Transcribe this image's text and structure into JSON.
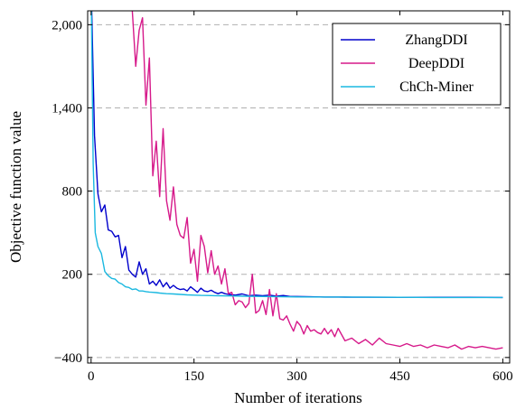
{
  "chart_data": {
    "type": "line",
    "xlabel": "Number of iterations",
    "ylabel": "Objective function value",
    "xlim": [
      -5,
      610
    ],
    "ylim": [
      -440,
      2100
    ],
    "xticks": [
      0,
      150,
      300,
      450,
      600
    ],
    "yticks": [
      -400,
      200,
      800,
      1400,
      2000
    ],
    "xtick_labels": [
      "0",
      "150",
      "300",
      "450",
      "600"
    ],
    "ytick_labels": [
      "−400",
      "200",
      "800",
      "1,400",
      "2,000"
    ],
    "grid": "y-dashed",
    "legend_position": "top-right",
    "series": [
      {
        "name": "ZhangDDI",
        "color": "#0000cc",
        "x": [
          0,
          5,
          10,
          15,
          20,
          25,
          30,
          35,
          40,
          45,
          50,
          55,
          60,
          65,
          70,
          75,
          80,
          85,
          90,
          95,
          100,
          105,
          110,
          115,
          120,
          125,
          130,
          135,
          140,
          145,
          150,
          155,
          160,
          165,
          170,
          175,
          180,
          185,
          190,
          195,
          200,
          210,
          220,
          230,
          240,
          250,
          260,
          270,
          280,
          290,
          300,
          320,
          340,
          360,
          380,
          400,
          450,
          500,
          550,
          600
        ],
        "y": [
          2300,
          1200,
          780,
          650,
          700,
          520,
          510,
          470,
          480,
          320,
          400,
          230,
          200,
          180,
          290,
          200,
          240,
          130,
          150,
          120,
          160,
          110,
          140,
          100,
          120,
          100,
          90,
          95,
          80,
          110,
          90,
          70,
          100,
          80,
          75,
          85,
          70,
          60,
          70,
          60,
          55,
          50,
          58,
          45,
          50,
          45,
          50,
          42,
          47,
          40,
          40,
          38,
          36,
          36,
          35,
          35,
          34,
          34,
          34,
          33
        ]
      },
      {
        "name": "DeepDDI",
        "color": "#d6198a",
        "x": [
          60,
          65,
          70,
          75,
          80,
          85,
          90,
          95,
          100,
          105,
          110,
          115,
          120,
          125,
          130,
          135,
          140,
          145,
          150,
          155,
          160,
          165,
          170,
          175,
          180,
          185,
          190,
          195,
          200,
          205,
          210,
          215,
          220,
          225,
          230,
          235,
          240,
          245,
          250,
          255,
          260,
          265,
          270,
          275,
          280,
          285,
          290,
          295,
          300,
          305,
          310,
          315,
          320,
          325,
          330,
          335,
          340,
          345,
          350,
          355,
          360,
          370,
          380,
          390,
          400,
          410,
          420,
          430,
          440,
          450,
          460,
          470,
          480,
          490,
          500,
          510,
          520,
          530,
          540,
          550,
          560,
          570,
          580,
          590,
          600
        ],
        "y": [
          2100,
          1700,
          1960,
          2050,
          1420,
          1760,
          910,
          1160,
          760,
          1250,
          730,
          590,
          830,
          560,
          480,
          460,
          610,
          280,
          380,
          150,
          480,
          400,
          210,
          370,
          200,
          260,
          130,
          240,
          60,
          70,
          -20,
          10,
          0,
          -40,
          -10,
          200,
          -80,
          -60,
          10,
          -90,
          90,
          -100,
          60,
          -120,
          -130,
          -100,
          -160,
          -210,
          -140,
          -170,
          -230,
          -170,
          -210,
          -200,
          -220,
          -230,
          -190,
          -230,
          -200,
          -250,
          -190,
          -280,
          -260,
          -300,
          -270,
          -310,
          -260,
          -300,
          -310,
          -320,
          -300,
          -320,
          -310,
          -330,
          -310,
          -320,
          -330,
          -310,
          -340,
          -320,
          -330,
          -320,
          -330,
          -340,
          -330
        ]
      },
      {
        "name": "ChCh-Miner",
        "color": "#1ab8e0",
        "x": [
          0,
          3,
          6,
          10,
          15,
          20,
          25,
          30,
          35,
          40,
          45,
          50,
          55,
          60,
          65,
          70,
          75,
          80,
          85,
          90,
          95,
          100,
          110,
          120,
          130,
          140,
          150,
          160,
          170,
          180,
          190,
          200,
          225,
          250,
          275,
          300,
          350,
          400,
          450,
          500,
          550,
          600
        ],
        "y": [
          2300,
          1000,
          500,
          400,
          350,
          220,
          190,
          170,
          165,
          140,
          130,
          110,
          105,
          90,
          95,
          80,
          80,
          75,
          72,
          70,
          68,
          65,
          60,
          58,
          55,
          52,
          50,
          48,
          47,
          46,
          45,
          44,
          42,
          40,
          38,
          37,
          36,
          35,
          34,
          33,
          33,
          33
        ]
      }
    ]
  }
}
